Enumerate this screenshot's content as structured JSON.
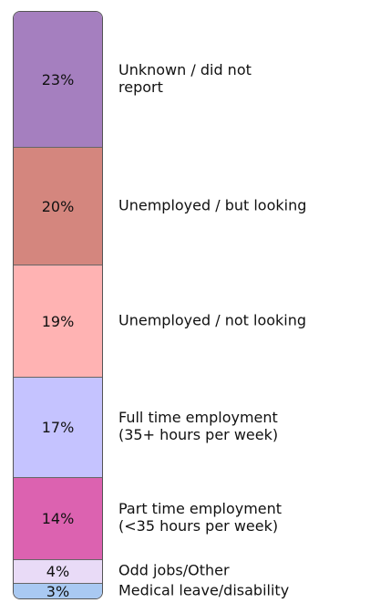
{
  "chart_data": {
    "type": "stacked-bar",
    "categories": [
      "Unknown / did not\nreport",
      "Unemployed / but looking",
      "Unemployed / not looking",
      "Full time employment\n(35+ hours per week)",
      "Part time employment\n(<35 hours per week)",
      "Odd jobs/Other",
      "Medical leave/disability"
    ],
    "values": [
      23,
      20,
      19,
      17,
      14,
      4,
      3
    ],
    "value_labels": [
      "23%",
      "20%",
      "19%",
      "17%",
      "14%",
      "4%",
      "3%"
    ],
    "colors": [
      "#a57fbf",
      "#d4867e",
      "#ffb3b3",
      "#c5c3ff",
      "#dc62b0",
      "#e9dbf7",
      "#a9c9f2"
    ]
  }
}
